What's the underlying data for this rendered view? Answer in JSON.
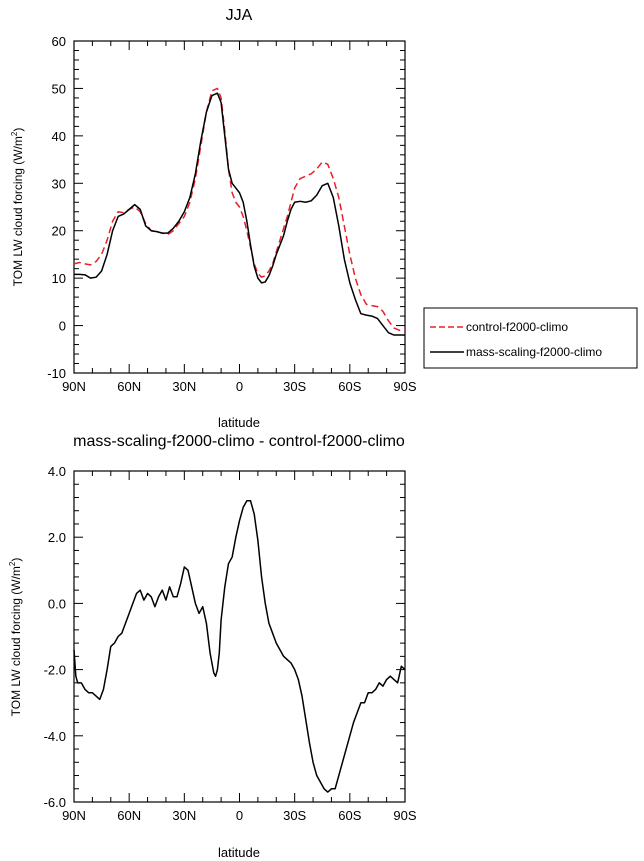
{
  "chart_data": [
    {
      "type": "line",
      "title": "JJA",
      "xlabel": "latitude",
      "ylabel": "TOM LW cloud forcing (W/m",
      "ylabel_sup": "2",
      "ylabel_close": ")",
      "xlim": [
        -90,
        90
      ],
      "ylim": [
        -10,
        60
      ],
      "x_ticks": [
        -90,
        -60,
        -30,
        0,
        30,
        60,
        90
      ],
      "x_tick_labels": [
        "90N",
        "60N",
        "30N",
        "0",
        "30S",
        "60S",
        "90S"
      ],
      "y_ticks": [
        -10,
        0,
        10,
        20,
        30,
        40,
        50,
        60
      ],
      "y_tick_labels": [
        "-10",
        "0",
        "10",
        "20",
        "30",
        "40",
        "50",
        "60"
      ],
      "legend_position": "right",
      "series": [
        {
          "name": "control-f2000-climo",
          "color": "#e8202a",
          "dash": "dashed",
          "x": [
            -90,
            -87,
            -84,
            -81,
            -78,
            -75,
            -72,
            -69,
            -66,
            -63,
            -60,
            -57,
            -54,
            -51,
            -48,
            -45,
            -42,
            -39,
            -36,
            -33,
            -30,
            -27,
            -24,
            -21,
            -18,
            -15,
            -12,
            -10,
            -8,
            -6,
            -4,
            -2,
            0,
            2,
            4,
            6,
            8,
            10,
            12,
            14,
            16,
            18,
            20,
            22,
            24,
            26,
            28,
            30,
            33,
            36,
            39,
            42,
            45,
            48,
            51,
            54,
            57,
            60,
            63,
            66,
            69,
            72,
            75,
            78,
            81,
            84,
            87,
            90
          ],
          "y": [
            13,
            13.3,
            13,
            12.8,
            13.5,
            15,
            18,
            22,
            24,
            23.8,
            24.5,
            25,
            24,
            21.5,
            20,
            19.8,
            19.5,
            19.2,
            20,
            21.5,
            23,
            26,
            31,
            38,
            45,
            49.5,
            50,
            48,
            41,
            33,
            28,
            26,
            25,
            23,
            20,
            16.5,
            13,
            11,
            10.2,
            10.5,
            11.5,
            13,
            15.5,
            18,
            20.5,
            23,
            26,
            29,
            31,
            31.5,
            32,
            33,
            34.5,
            34,
            31,
            27,
            21,
            15,
            10,
            6.5,
            4.5,
            4.2,
            4,
            3,
            1,
            -0.5,
            -1,
            -1
          ]
        },
        {
          "name": "mass-scaling-f2000-climo",
          "color": "#000000",
          "dash": "solid",
          "x": [
            -90,
            -87,
            -84,
            -81,
            -78,
            -75,
            -72,
            -69,
            -66,
            -63,
            -60,
            -57,
            -54,
            -51,
            -48,
            -45,
            -42,
            -39,
            -36,
            -33,
            -30,
            -27,
            -24,
            -21,
            -18,
            -15,
            -12,
            -10,
            -8,
            -6,
            -4,
            -2,
            0,
            2,
            4,
            6,
            8,
            10,
            12,
            14,
            16,
            18,
            20,
            22,
            24,
            26,
            28,
            30,
            33,
            36,
            39,
            42,
            45,
            48,
            51,
            54,
            57,
            60,
            63,
            66,
            69,
            72,
            75,
            78,
            81,
            84,
            87,
            90
          ],
          "y": [
            10.8,
            10.8,
            10.7,
            10,
            10.2,
            11.5,
            15,
            20,
            23,
            23.5,
            24.5,
            25.5,
            24.5,
            21,
            20,
            19.8,
            19.5,
            19.5,
            20.5,
            22,
            24,
            27,
            32,
            39,
            45,
            48.5,
            49,
            47,
            40,
            33,
            30,
            29,
            28,
            26,
            22,
            17,
            12.5,
            10,
            9,
            9.2,
            10.5,
            12.5,
            15,
            17,
            19,
            22,
            24.5,
            26,
            26.2,
            26,
            26.3,
            27.5,
            29.5,
            30,
            27,
            21,
            14,
            9,
            5.5,
            2.5,
            2.2,
            2,
            1.5,
            0,
            -1.5,
            -2,
            -2,
            -2
          ]
        }
      ]
    },
    {
      "type": "line",
      "title": "mass-scaling-f2000-climo - control-f2000-climo",
      "xlabel": "latitude",
      "ylabel": "TOM LW cloud forcing (W/m",
      "ylabel_sup": "2",
      "ylabel_close": ")",
      "xlim": [
        -90,
        90
      ],
      "ylim": [
        -6,
        4
      ],
      "x_ticks": [
        -90,
        -60,
        -30,
        0,
        30,
        60,
        90
      ],
      "x_tick_labels": [
        "90N",
        "60N",
        "30N",
        "0",
        "30S",
        "60S",
        "90S"
      ],
      "y_ticks": [
        -6,
        -4,
        -2,
        0,
        2,
        4
      ],
      "y_tick_labels": [
        "-6.0",
        "-4.0",
        "-2.0",
        "0.0",
        "2.0",
        "4.0"
      ],
      "series": [
        {
          "color": "#000000",
          "dash": "solid",
          "x": [
            -90,
            -89,
            -88,
            -86,
            -84,
            -82,
            -80,
            -78,
            -76,
            -74,
            -72,
            -70,
            -68,
            -66,
            -64,
            -62,
            -60,
            -58,
            -56,
            -54,
            -52,
            -50,
            -48,
            -46,
            -44,
            -42,
            -40,
            -38,
            -36,
            -34,
            -32,
            -30,
            -28,
            -26,
            -24,
            -22,
            -20,
            -18,
            -16,
            -14,
            -13,
            -12,
            -11,
            -10,
            -8,
            -6,
            -4,
            -2,
            0,
            2,
            4,
            6,
            8,
            10,
            12,
            14,
            16,
            18,
            20,
            22,
            24,
            26,
            28,
            30,
            32,
            34,
            36,
            38,
            40,
            42,
            44,
            46,
            48,
            50,
            52,
            54,
            56,
            58,
            60,
            62,
            64,
            66,
            68,
            70,
            72,
            74,
            76,
            78,
            80,
            82,
            84,
            86,
            88,
            90
          ],
          "y": [
            -1.4,
            -2.2,
            -2.4,
            -2.4,
            -2.6,
            -2.7,
            -2.7,
            -2.8,
            -2.9,
            -2.6,
            -2,
            -1.3,
            -1.2,
            -1.0,
            -0.9,
            -0.6,
            -0.3,
            0,
            0.3,
            0.4,
            0.1,
            0.3,
            0.2,
            -0.1,
            0.2,
            0.4,
            0.1,
            0.5,
            0.2,
            0.2,
            0.6,
            1.1,
            1.0,
            0.5,
            0.0,
            -0.3,
            -0.1,
            -0.6,
            -1.5,
            -2.1,
            -2.2,
            -2.0,
            -1.5,
            -0.5,
            0.5,
            1.2,
            1.4,
            2.0,
            2.5,
            2.9,
            3.1,
            3.1,
            2.7,
            1.9,
            0.8,
            0.0,
            -0.6,
            -0.9,
            -1.2,
            -1.4,
            -1.6,
            -1.7,
            -1.8,
            -2.0,
            -2.3,
            -2.8,
            -3.5,
            -4.2,
            -4.8,
            -5.2,
            -5.4,
            -5.6,
            -5.7,
            -5.6,
            -5.6,
            -5.2,
            -4.8,
            -4.4,
            -4.0,
            -3.6,
            -3.3,
            -3.0,
            -3.0,
            -2.7,
            -2.7,
            -2.6,
            -2.4,
            -2.5,
            -2.3,
            -2.2,
            -2.3,
            -2.4,
            -1.9,
            -2.0
          ]
        }
      ]
    }
  ]
}
